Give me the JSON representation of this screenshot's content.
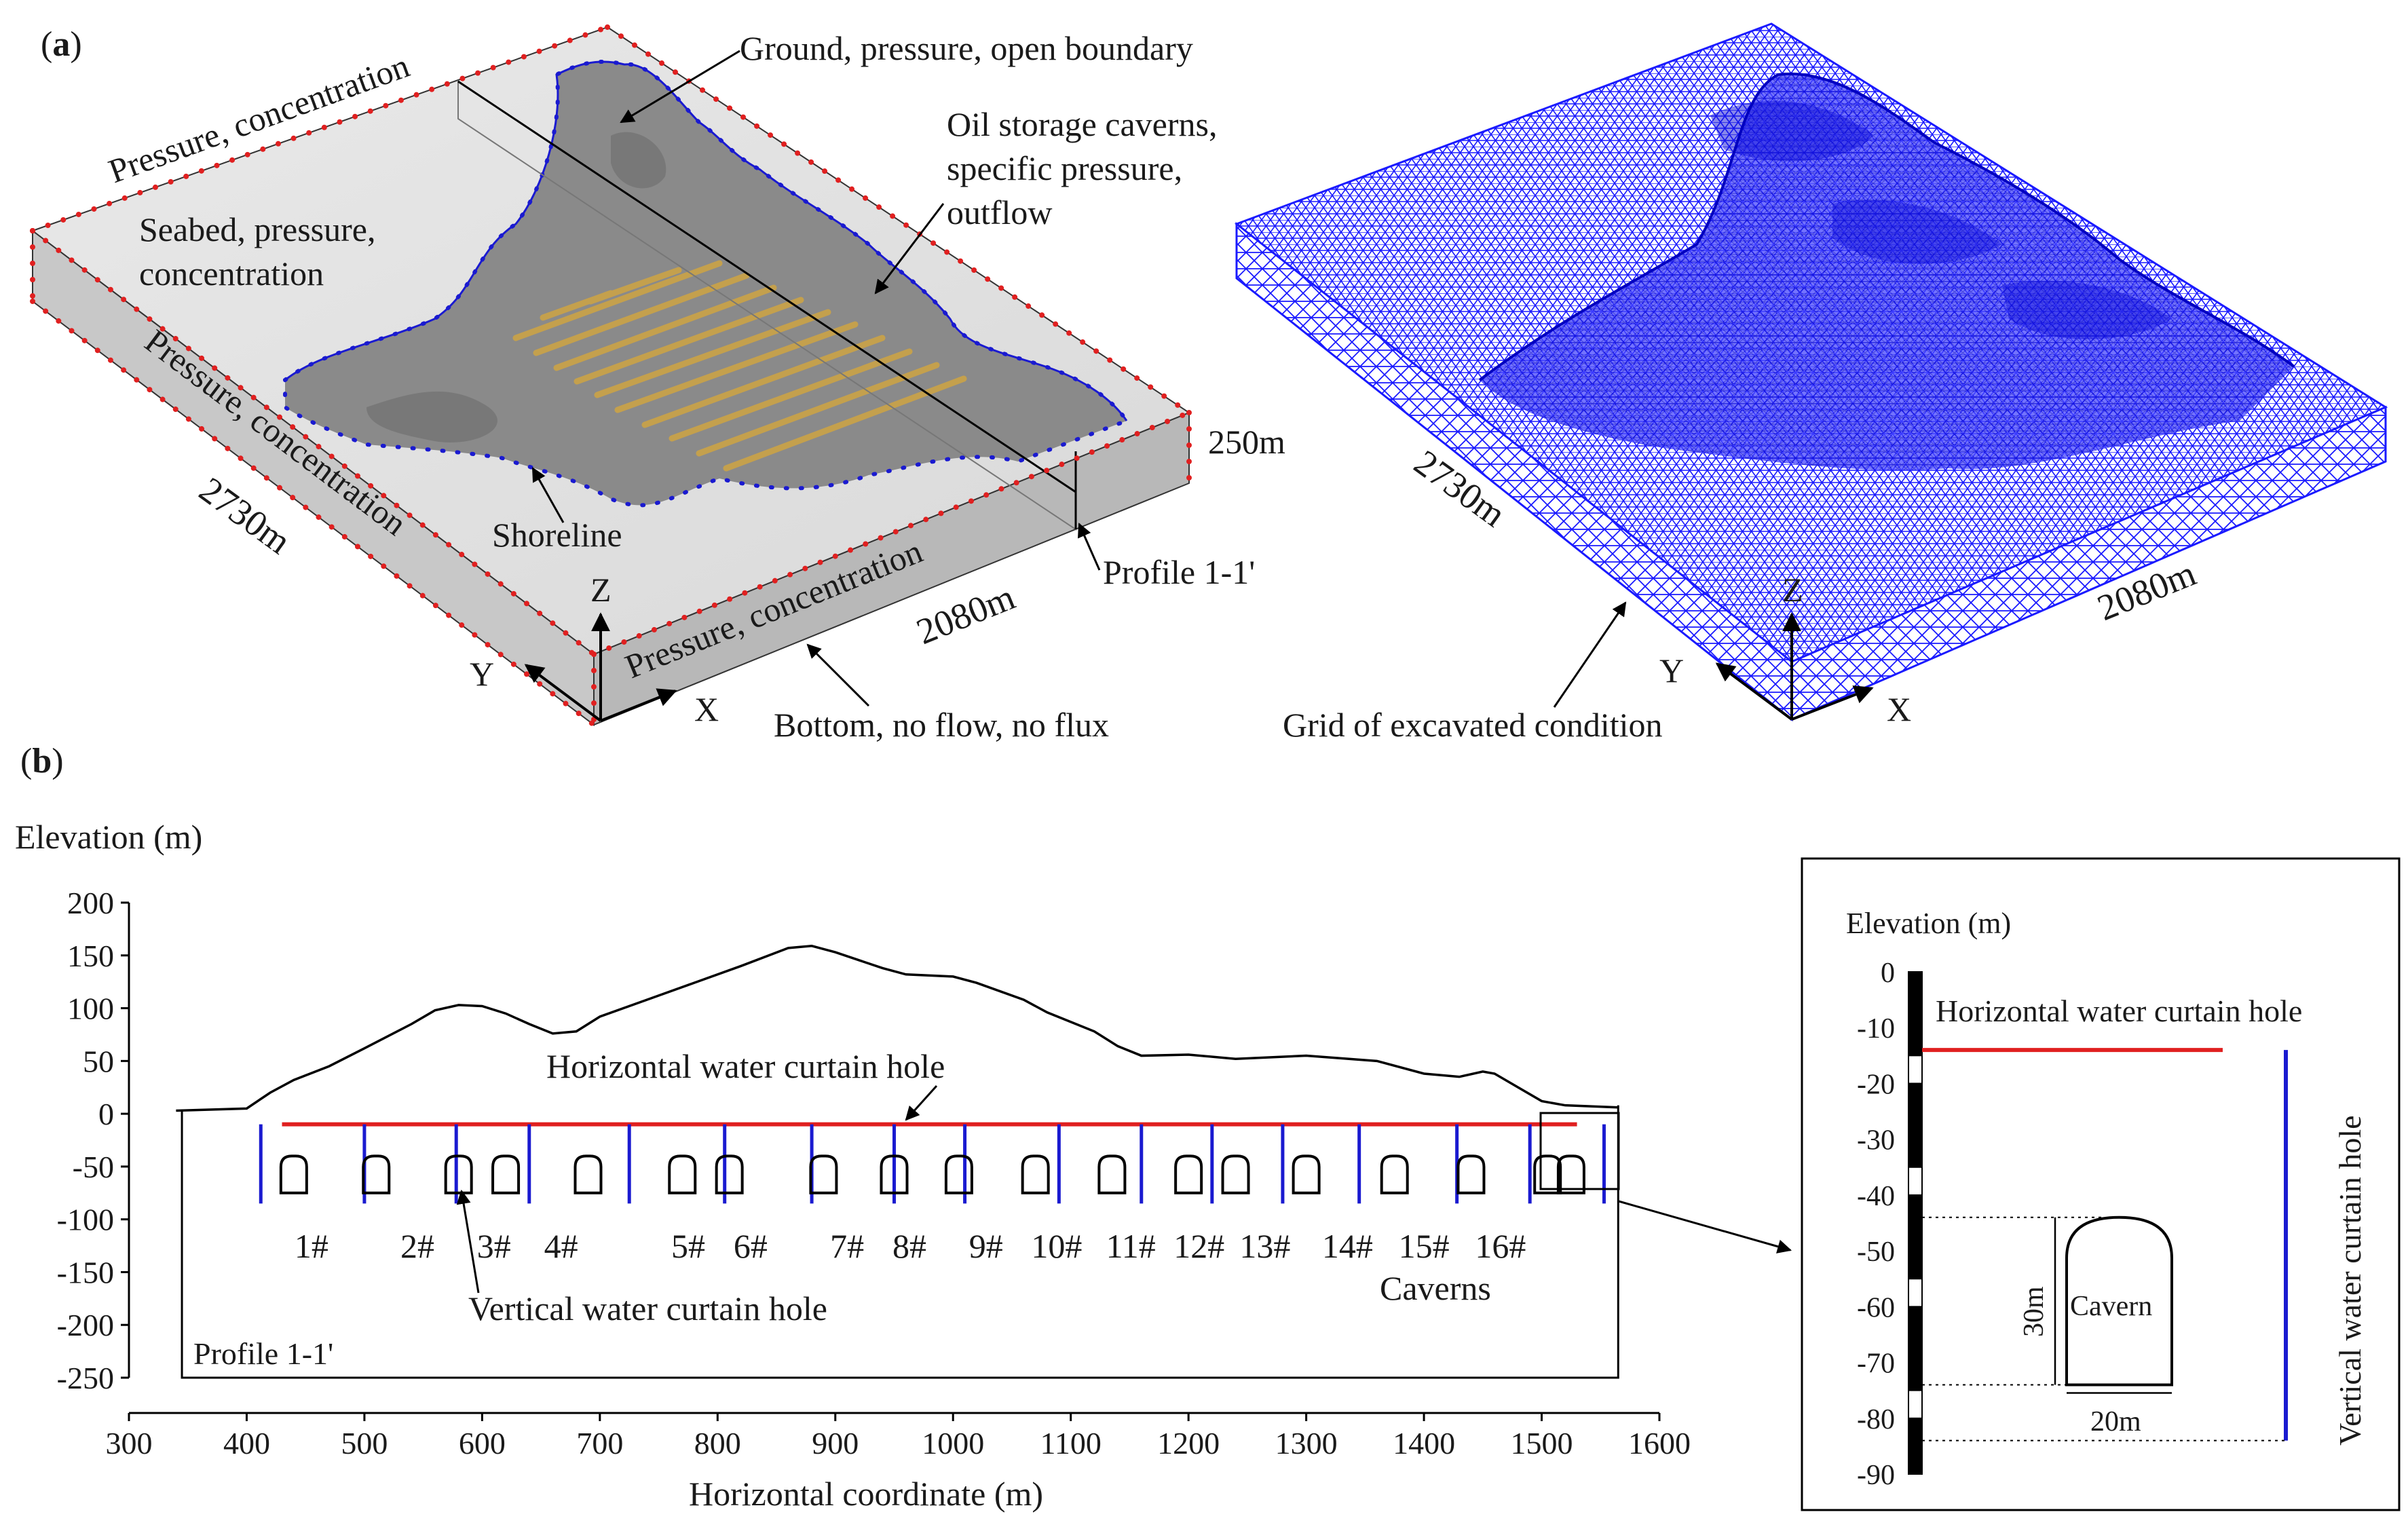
{
  "panel_a": {
    "label": "a",
    "model": {
      "pressure_conc_top": "Pressure, concentration",
      "pressure_conc_left": "Pressure, concentration",
      "pressure_conc_front": "Pressure, concentration",
      "ground": "Ground, pressure, open boundary",
      "caverns": [
        "Oil storage caverns,",
        "specific pressure,",
        "outflow"
      ],
      "seabed": [
        "Seabed, pressure,",
        "concentration"
      ],
      "shoreline": "Shoreline",
      "profile": "Profile 1-1'",
      "bottom": "Bottom, no flow, no flux",
      "dim_x": "2730m",
      "dim_y": "2080m",
      "dim_z": "250m",
      "axis_x": "X",
      "axis_y": "Y",
      "axis_z": "Z"
    },
    "mesh": {
      "caption": "Grid of excavated condition",
      "dim_x": "2730m",
      "dim_y": "2080m",
      "axis_x": "X",
      "axis_y": "Y",
      "axis_z": "Z",
      "mesh_color": "#1a1aff"
    }
  },
  "panel_b": {
    "label": "b",
    "profile_chart": {
      "ylabel": "Elevation (m)",
      "xlabel": "Horizontal coordinate (m)",
      "xlim": [
        300,
        1600
      ],
      "ylim": [
        -250,
        200
      ],
      "x_ticks": [
        300,
        400,
        500,
        600,
        700,
        800,
        900,
        1000,
        1100,
        1200,
        1300,
        1400,
        1500,
        1600
      ],
      "y_ticks": [
        200,
        150,
        100,
        50,
        0,
        -50,
        -100,
        -150,
        -200,
        -250
      ],
      "ground_surface": [
        [
          340,
          3
        ],
        [
          400,
          5
        ],
        [
          420,
          20
        ],
        [
          440,
          32
        ],
        [
          470,
          45
        ],
        [
          500,
          62
        ],
        [
          540,
          85
        ],
        [
          560,
          98
        ],
        [
          580,
          103
        ],
        [
          600,
          102
        ],
        [
          620,
          95
        ],
        [
          640,
          85
        ],
        [
          660,
          76
        ],
        [
          680,
          78
        ],
        [
          700,
          92
        ],
        [
          740,
          108
        ],
        [
          780,
          124
        ],
        [
          820,
          140
        ],
        [
          860,
          157
        ],
        [
          880,
          159
        ],
        [
          900,
          153
        ],
        [
          940,
          138
        ],
        [
          960,
          132
        ],
        [
          1000,
          130
        ],
        [
          1020,
          124
        ],
        [
          1060,
          108
        ],
        [
          1080,
          96
        ],
        [
          1120,
          78
        ],
        [
          1140,
          64
        ],
        [
          1160,
          55
        ],
        [
          1200,
          56
        ],
        [
          1240,
          52
        ],
        [
          1300,
          55
        ],
        [
          1360,
          50
        ],
        [
          1400,
          38
        ],
        [
          1430,
          35
        ],
        [
          1450,
          40
        ],
        [
          1460,
          38
        ],
        [
          1480,
          25
        ],
        [
          1500,
          12
        ],
        [
          1520,
          8
        ],
        [
          1565,
          6
        ]
      ],
      "domain_box": {
        "x_left": 345,
        "x_right": 1565,
        "bottom": -250,
        "top_right": 8
      },
      "horizontal_hole": {
        "x_start": 430,
        "x_end": 1530,
        "elevation": -10,
        "color": "#e02020"
      },
      "vertical_holes": {
        "x": [
          412,
          500,
          578,
          640,
          725,
          806,
          880,
          950,
          1010,
          1090,
          1160,
          1220,
          1280,
          1345,
          1428,
          1490,
          1553
        ],
        "top": -10,
        "bottom": -85,
        "color": "#1a1ad0"
      },
      "caverns": {
        "x": [
          440,
          510,
          580,
          620,
          690,
          770,
          810,
          890,
          950,
          1005,
          1070,
          1135,
          1200,
          1240,
          1300,
          1375,
          1440,
          1505,
          1525
        ],
        "top": -40,
        "bottom": -75
      },
      "cavern_labels": [
        "1#",
        "2#",
        "3#",
        "4#",
        "5#",
        "6#",
        "7#",
        "8#",
        "9#",
        "10#",
        "11#",
        "12#",
        "13#",
        "14#",
        "15#",
        "16#"
      ],
      "cavern_label_x": [
        455,
        545,
        610,
        667,
        775,
        828,
        910,
        963,
        1028,
        1088,
        1151,
        1209,
        1265,
        1335,
        1400,
        1465
      ],
      "annotations": {
        "horizontal": "Horizontal water curtain hole",
        "vertical": "Vertical water curtain hole",
        "caverns": "Caverns",
        "profile": "Profile 1-1'"
      }
    },
    "detail": {
      "ylabel": "Elevation (m)",
      "ylim": [
        -90,
        0
      ],
      "y_ticks": [
        0,
        -10,
        -20,
        -30,
        -40,
        -50,
        -60,
        -70,
        -80,
        -90
      ],
      "horizontal_hole_label": "Horizontal water curtain hole",
      "vertical_hole_label": "Vertical water curtain hole",
      "cavern_label": "Cavern",
      "height_label": "30m",
      "width_label": "20m",
      "horizontal_hole_elevation": -14,
      "vertical_hole_range": [
        -14,
        -84
      ],
      "cavern_range": [
        -44,
        -74
      ]
    }
  }
}
